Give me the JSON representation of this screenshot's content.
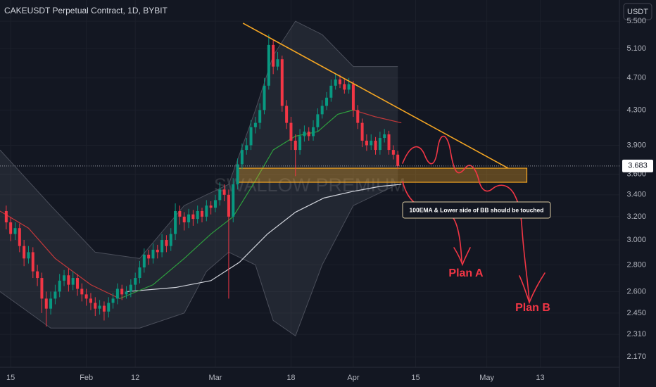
{
  "chart_data": {
    "type": "candlestick",
    "title": "CAKEUSDT Perpetual Contract, 1D, BYBIT",
    "currency": "USDT",
    "watermark": "SWALLOW PREMIUM",
    "log_scale": true,
    "grid": true,
    "up_color": "#089981",
    "down_color": "#f23645",
    "xlim": [
      -1.4,
      137.8
    ],
    "ylim": [
      2.108,
      5.833
    ],
    "xticks": [
      {
        "value": 1,
        "label": "15"
      },
      {
        "value": 18,
        "label": "Feb"
      },
      {
        "value": 29,
        "label": "12"
      },
      {
        "value": 47,
        "label": "Mar"
      },
      {
        "value": 64,
        "label": "18"
      },
      {
        "value": 78,
        "label": "Apr"
      },
      {
        "value": 92,
        "label": "15"
      },
      {
        "value": 108,
        "label": "May"
      },
      {
        "value": 120,
        "label": "13"
      }
    ],
    "yticks": [
      {
        "value": 5.5,
        "label": "5.500"
      },
      {
        "value": 5.1,
        "label": "5.100"
      },
      {
        "value": 4.7,
        "label": "4.700"
      },
      {
        "value": 4.3,
        "label": "4.300"
      },
      {
        "value": 3.9,
        "label": "3.900"
      },
      {
        "value": 3.6,
        "label": "3.600"
      },
      {
        "value": 3.4,
        "label": "3.400"
      },
      {
        "value": 3.2,
        "label": "3.200"
      },
      {
        "value": 3.0,
        "label": "3.000"
      },
      {
        "value": 2.8,
        "label": "2.800"
      },
      {
        "value": 2.6,
        "label": "2.600"
      },
      {
        "value": 2.45,
        "label": "2.450"
      },
      {
        "value": 2.31,
        "label": "2.310"
      },
      {
        "value": 2.17,
        "label": "2.170"
      }
    ],
    "x": [
      0,
      1,
      2,
      3,
      4,
      5,
      6,
      7,
      8,
      9,
      10,
      11,
      12,
      13,
      14,
      15,
      16,
      17,
      18,
      19,
      20,
      21,
      22,
      23,
      24,
      25,
      26,
      27,
      28,
      29,
      30,
      31,
      32,
      33,
      34,
      35,
      36,
      37,
      38,
      39,
      40,
      41,
      42,
      43,
      44,
      45,
      46,
      47,
      48,
      49,
      50,
      51,
      52,
      53,
      54,
      55,
      56,
      57,
      58,
      59,
      60,
      61,
      62,
      63,
      64,
      65,
      66,
      67,
      68,
      69,
      70,
      71,
      72,
      73,
      74,
      75,
      76,
      77,
      78,
      79,
      80,
      81,
      82,
      83,
      84,
      85,
      86,
      87,
      88
    ],
    "open": [
      3.25,
      3.15,
      3.05,
      3.1,
      2.95,
      2.85,
      2.9,
      2.75,
      2.7,
      2.55,
      2.48,
      2.55,
      2.6,
      2.68,
      2.72,
      2.65,
      2.7,
      2.62,
      2.58,
      2.55,
      2.52,
      2.48,
      2.5,
      2.46,
      2.52,
      2.55,
      2.62,
      2.58,
      2.6,
      2.65,
      2.7,
      2.78,
      2.88,
      2.85,
      2.92,
      2.9,
      3.0,
      2.95,
      3.05,
      3.25,
      3.2,
      3.15,
      3.22,
      3.18,
      3.25,
      3.2,
      3.3,
      3.28,
      3.35,
      3.45,
      3.4,
      3.2,
      3.5,
      3.7,
      3.85,
      3.9,
      4.1,
      4.15,
      4.3,
      4.6,
      5.15,
      4.85,
      4.95,
      4.35,
      4.15,
      3.95,
      3.85,
      4.0,
      4.05,
      4.0,
      4.1,
      4.25,
      4.35,
      4.45,
      4.6,
      4.68,
      4.62,
      4.55,
      4.62,
      4.3,
      4.15,
      3.95,
      3.9,
      3.95,
      3.85,
      3.98,
      4.02,
      3.85,
      3.8
    ],
    "high": [
      3.3,
      3.2,
      3.15,
      3.14,
      3.0,
      2.95,
      2.94,
      2.8,
      2.74,
      2.6,
      2.6,
      2.65,
      2.73,
      2.76,
      2.77,
      2.75,
      2.73,
      2.66,
      2.62,
      2.59,
      2.56,
      2.54,
      2.53,
      2.56,
      2.59,
      2.66,
      2.65,
      2.64,
      2.69,
      2.74,
      2.83,
      2.93,
      2.92,
      2.97,
      2.96,
      3.05,
      3.04,
      3.1,
      3.32,
      3.3,
      3.24,
      3.27,
      3.26,
      3.3,
      3.28,
      3.35,
      3.34,
      3.4,
      3.52,
      3.5,
      3.45,
      3.56,
      3.76,
      3.92,
      3.98,
      4.18,
      4.22,
      4.38,
      4.7,
      5.3,
      5.22,
      5.05,
      5.0,
      4.42,
      4.22,
      4.02,
      4.08,
      4.12,
      4.1,
      4.18,
      4.32,
      4.42,
      4.52,
      4.68,
      4.76,
      4.74,
      4.68,
      4.7,
      4.66,
      4.36,
      4.2,
      4.02,
      4.02,
      3.99,
      4.05,
      4.08,
      4.06,
      3.9,
      3.84
    ],
    "low": [
      3.09,
      2.99,
      3.0,
      2.9,
      2.79,
      2.81,
      2.7,
      2.64,
      2.45,
      2.36,
      2.44,
      2.51,
      2.56,
      2.64,
      2.6,
      2.61,
      2.57,
      2.53,
      2.5,
      2.47,
      2.43,
      2.44,
      2.4,
      2.42,
      2.48,
      2.51,
      2.54,
      2.55,
      2.56,
      2.61,
      2.66,
      2.74,
      2.8,
      2.81,
      2.85,
      2.86,
      2.9,
      2.91,
      3.0,
      3.13,
      3.08,
      3.1,
      3.12,
      3.14,
      3.15,
      3.16,
      3.22,
      3.24,
      3.3,
      3.34,
      2.55,
      3.15,
      3.45,
      3.65,
      3.8,
      3.85,
      4.03,
      4.08,
      4.25,
      4.55,
      4.75,
      4.8,
      4.28,
      4.08,
      3.85,
      3.58,
      3.8,
      3.94,
      3.95,
      3.95,
      4.05,
      4.2,
      4.3,
      4.4,
      4.55,
      4.57,
      4.5,
      4.5,
      4.22,
      4.08,
      3.88,
      3.84,
      3.85,
      3.8,
      3.8,
      3.93,
      3.8,
      3.75,
      3.65
    ],
    "close": [
      3.15,
      3.05,
      3.1,
      2.95,
      2.85,
      2.9,
      2.75,
      2.7,
      2.55,
      2.48,
      2.55,
      2.6,
      2.68,
      2.72,
      2.65,
      2.7,
      2.62,
      2.58,
      2.55,
      2.52,
      2.48,
      2.5,
      2.46,
      2.52,
      2.55,
      2.62,
      2.58,
      2.6,
      2.65,
      2.7,
      2.78,
      2.88,
      2.85,
      2.92,
      2.9,
      3.0,
      2.95,
      3.05,
      3.25,
      3.2,
      3.15,
      3.22,
      3.18,
      3.25,
      3.2,
      3.3,
      3.28,
      3.35,
      3.45,
      3.4,
      3.2,
      3.5,
      3.7,
      3.85,
      3.9,
      4.1,
      4.15,
      4.3,
      4.6,
      5.15,
      4.85,
      4.95,
      4.35,
      4.15,
      3.95,
      3.85,
      4.0,
      4.05,
      4.0,
      4.1,
      4.25,
      4.35,
      4.45,
      4.6,
      4.68,
      4.62,
      4.55,
      4.62,
      4.3,
      4.15,
      3.95,
      3.9,
      3.95,
      3.85,
      3.98,
      4.02,
      3.85,
      3.8,
      3.683
    ],
    "bands": {
      "fill": "rgba(120,123,134,0.16)",
      "color": "#4a4e5a",
      "x": [
        -1.4,
        10,
        20,
        30,
        40,
        45,
        50,
        56,
        60,
        65,
        71,
        78,
        88
      ],
      "upper": [
        3.85,
        3.3,
        2.9,
        2.85,
        3.3,
        3.4,
        3.5,
        4.3,
        5.0,
        5.5,
        5.3,
        4.85,
        4.85
      ],
      "lower": [
        2.6,
        2.35,
        2.35,
        2.35,
        2.45,
        2.75,
        2.9,
        2.8,
        2.4,
        2.3,
        2.8,
        3.3,
        3.5
      ]
    },
    "lines": [
      {
        "color": "#d1d4dc",
        "x": [
          27.1,
          38.1,
          46,
          52.4,
          58.7,
          65,
          71.4,
          77.7,
          84,
          88.8
        ],
        "values": [
          2.6,
          2.63,
          2.68,
          2.82,
          3.05,
          3.24,
          3.37,
          3.43,
          3.48,
          3.5
        ]
      },
      {
        "color": "#2e9e3e",
        "x": [
          25.5,
          33,
          40,
          46,
          51,
          55.5,
          60,
          65,
          70,
          74.5,
          78
        ],
        "values": [
          2.55,
          2.65,
          2.85,
          3.05,
          3.2,
          3.5,
          3.85,
          4.0,
          4.05,
          4.25,
          4.3
        ]
      },
      {
        "color": "#c2383a",
        "x": [
          -1.4,
          5,
          11,
          19,
          25.5
        ],
        "values": [
          3.25,
          3.1,
          2.85,
          2.65,
          2.55
        ]
      },
      {
        "color": "#c2383a",
        "x": [
          78,
          83,
          88.8
        ],
        "values": [
          4.3,
          4.22,
          4.15
        ]
      }
    ],
    "trendline": {
      "color": "#f5a623",
      "x": [
        53.2,
        112.8
      ],
      "values": [
        5.47,
        3.66
      ]
    },
    "zone": {
      "color": "#f5a623",
      "x": [
        52,
        117
      ],
      "values": [
        3.52,
        3.66
      ]
    },
    "note": "100EMA & Lower side of BB should be touched",
    "plans": [
      "Plan A",
      "Plan B"
    ]
  }
}
